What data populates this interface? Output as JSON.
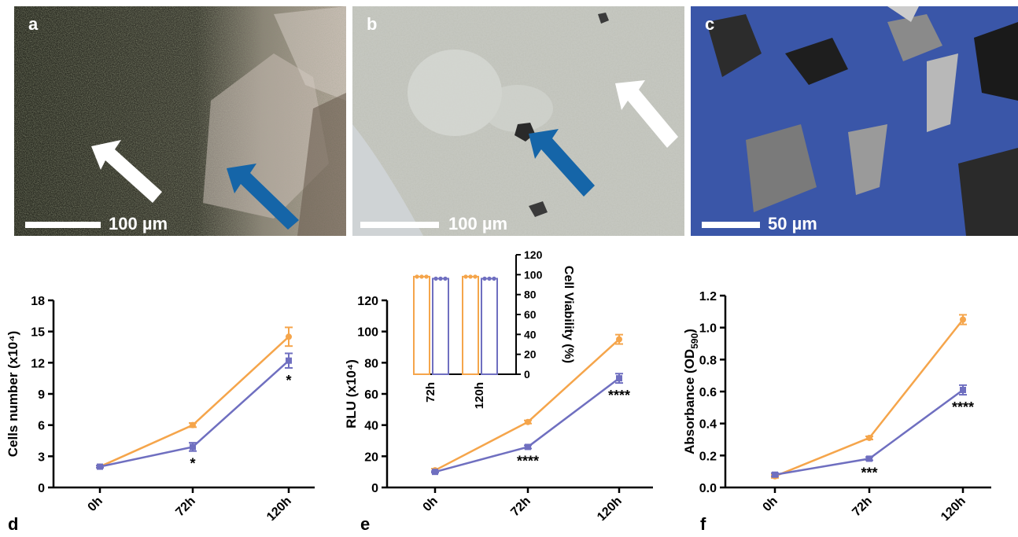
{
  "panels": {
    "a": {
      "letter": "a",
      "scale": "100 µm"
    },
    "b": {
      "letter": "b",
      "scale": "100 µm"
    },
    "c": {
      "letter": "c",
      "scale": "50 µm"
    },
    "d": {
      "letter": "d"
    },
    "e": {
      "letter": "e"
    },
    "f": {
      "letter": "f"
    }
  },
  "colors": {
    "orange": "#F5A54B",
    "purple": "#6F6FC0"
  },
  "chart_data": [
    {
      "id": "d",
      "type": "line",
      "categories": [
        "0h",
        "72h",
        "120h"
      ],
      "ylabel": "Cells number (x10⁴)",
      "ylim": [
        0,
        18
      ],
      "yticks": [
        0,
        3,
        6,
        9,
        12,
        15,
        18
      ],
      "series": [
        {
          "values": [
            2.0,
            6.0,
            14.5
          ],
          "errors": [
            0.1,
            0.2,
            0.9
          ],
          "color": "#F5A54B",
          "marker": "circle"
        },
        {
          "values": [
            2.0,
            3.9,
            12.2
          ],
          "errors": [
            0.1,
            0.4,
            0.7
          ],
          "color": "#6F6FC0",
          "marker": "square"
        }
      ],
      "annotations": [
        {
          "x": "72h",
          "text": "*"
        },
        {
          "x": "120h",
          "text": "*"
        }
      ]
    },
    {
      "id": "e",
      "type": "line",
      "categories": [
        "0h",
        "72h",
        "120h"
      ],
      "ylabel": "RLU (x10⁴)",
      "ylim": [
        0,
        120
      ],
      "yticks": [
        0,
        20,
        40,
        60,
        80,
        100,
        120
      ],
      "series": [
        {
          "values": [
            11,
            42,
            95
          ],
          "errors": [
            1,
            1,
            3
          ],
          "color": "#F5A54B",
          "marker": "circle"
        },
        {
          "values": [
            10,
            26,
            70
          ],
          "errors": [
            0.5,
            1,
            3
          ],
          "color": "#6F6FC0",
          "marker": "square"
        }
      ],
      "annotations": [
        {
          "x": "72h",
          "text": "****"
        },
        {
          "x": "120h",
          "text": "****"
        }
      ],
      "inset": {
        "type": "bar",
        "categories": [
          "72h",
          "120h"
        ],
        "ylabel": "Cell Viability (%)",
        "ylim": [
          0,
          120
        ],
        "yticks": [
          0,
          20,
          40,
          60,
          80,
          100,
          120
        ],
        "series": [
          {
            "values": [
              98,
              98
            ],
            "color": "#F5A54B"
          },
          {
            "values": [
              96,
              96
            ],
            "color": "#6F6FC0"
          }
        ]
      }
    },
    {
      "id": "f",
      "type": "line",
      "categories": [
        "0h",
        "72h",
        "120h"
      ],
      "ylabel": "Absorbance (OD590)",
      "ylabel_main": "Absorbance (OD",
      "ylabel_sub": "590",
      "ylabel_end": ")",
      "ylim": [
        0,
        1.2
      ],
      "yticks": [
        "0.0",
        "0.2",
        "0.4",
        "0.6",
        "0.8",
        "1.0",
        "1.2"
      ],
      "series": [
        {
          "values": [
            0.07,
            0.31,
            1.05
          ],
          "errors": [
            0.01,
            0.01,
            0.03
          ],
          "color": "#F5A54B",
          "marker": "circle"
        },
        {
          "values": [
            0.08,
            0.18,
            0.61
          ],
          "errors": [
            0.01,
            0.01,
            0.03
          ],
          "color": "#6F6FC0",
          "marker": "square"
        }
      ],
      "annotations": [
        {
          "x": "72h",
          "text": "***"
        },
        {
          "x": "120h",
          "text": "****"
        }
      ]
    }
  ]
}
